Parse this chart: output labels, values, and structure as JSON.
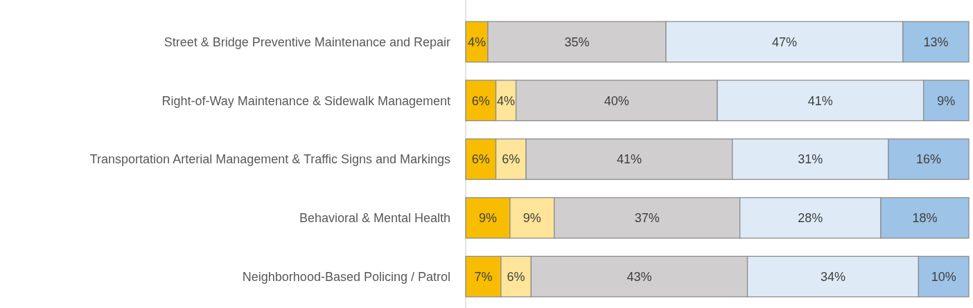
{
  "chart_data": {
    "type": "bar",
    "orientation": "horizontal",
    "stacked": true,
    "categories": [
      "Street & Bridge Preventive Maintenance and Repair",
      "Right-of-Way Maintenance & Sidewalk Management",
      "Transportation Arterial Management & Traffic Signs and Markings",
      "Behavioral & Mental Health",
      "Neighborhood-Based Policing / Patrol"
    ],
    "series": [
      {
        "color": "#f8bd00",
        "values": [
          4.4,
          6,
          6,
          8.8,
          7
        ],
        "value_labels": [
          "4%",
          "6%",
          "6%",
          "9%",
          "7%"
        ]
      },
      {
        "color": "#ffe599",
        "values": [
          null,
          4,
          6,
          8.8,
          6
        ],
        "value_labels": [
          null,
          "4%",
          "6%",
          "9%",
          "6%"
        ]
      },
      {
        "color": "#d0cece",
        "values": [
          35.4,
          40,
          41,
          36.9,
          43
        ],
        "value_labels": [
          "35%",
          "40%",
          "41%",
          "37%",
          "43%"
        ]
      },
      {
        "color": "#deebf7",
        "values": [
          47.1,
          41,
          31,
          28,
          34
        ],
        "value_labels": [
          "47%",
          "41%",
          "31%",
          "28%",
          "34%"
        ]
      },
      {
        "color": "#9dc3e6",
        "values": [
          13.1,
          9,
          16,
          17.5,
          10
        ],
        "value_labels": [
          "13%",
          "9%",
          "16%",
          "18%",
          "10%"
        ]
      }
    ]
  }
}
